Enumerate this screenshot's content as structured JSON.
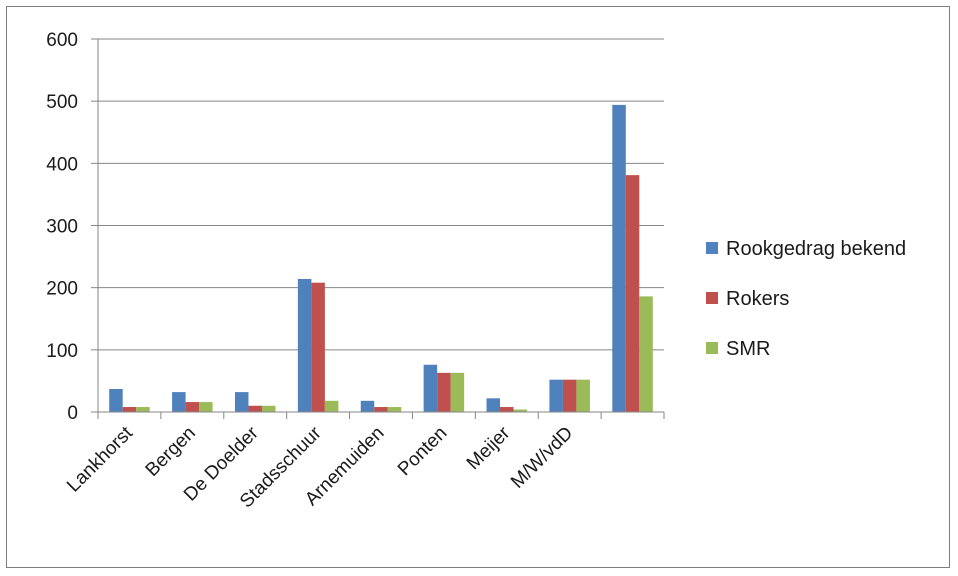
{
  "chart_data": {
    "type": "bar",
    "title": "",
    "xlabel": "",
    "ylabel": "",
    "ylim": [
      0,
      600
    ],
    "yticks": [
      0,
      100,
      200,
      300,
      400,
      500,
      600
    ],
    "grid": true,
    "legend_position": "right",
    "categories": [
      "Lankhorst",
      "Bergen",
      "De Doelder",
      "Stadsschuur",
      "Arnemuiden",
      "Ponten",
      "Meijer",
      "M/W/vdD",
      ""
    ],
    "series": [
      {
        "name": "Rookgedrag bekend",
        "color": "#4f81bd",
        "values": [
          37,
          32,
          32,
          214,
          18,
          76,
          22,
          52,
          494
        ]
      },
      {
        "name": "Rokers",
        "color": "#c0504d",
        "values": [
          8,
          16,
          10,
          208,
          8,
          63,
          8,
          52,
          381
        ]
      },
      {
        "name": "SMR",
        "color": "#9bbb59",
        "values": [
          8,
          16,
          10,
          18,
          8,
          63,
          4,
          52,
          186
        ]
      }
    ]
  }
}
